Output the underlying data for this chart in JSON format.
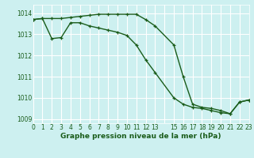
{
  "line1": {
    "x": [
      0,
      1,
      2,
      3,
      4,
      5,
      6,
      7,
      8,
      9,
      10,
      11,
      12,
      13,
      15,
      16,
      17,
      18,
      19,
      20,
      21,
      22,
      23
    ],
    "y": [
      1013.7,
      1013.75,
      1013.75,
      1013.75,
      1013.8,
      1013.85,
      1013.9,
      1013.95,
      1013.95,
      1013.95,
      1013.95,
      1013.95,
      1013.7,
      1013.4,
      1012.5,
      1011.0,
      1009.7,
      1009.55,
      1009.5,
      1009.4,
      1009.25,
      1009.8,
      1009.9
    ],
    "color": "#1a5c1a",
    "linewidth": 1.0,
    "marker": "+"
  },
  "line2": {
    "x": [
      0,
      1,
      2,
      3,
      4,
      5,
      6,
      7,
      8,
      9,
      10,
      11,
      12,
      13,
      15,
      16,
      17,
      18,
      19,
      20,
      21,
      22,
      23
    ],
    "y": [
      1013.7,
      1013.75,
      1012.8,
      1012.85,
      1013.55,
      1013.55,
      1013.4,
      1013.3,
      1013.2,
      1013.1,
      1012.95,
      1012.5,
      1011.8,
      1011.2,
      1010.0,
      1009.7,
      1009.55,
      1009.5,
      1009.4,
      1009.3,
      1009.25,
      1009.8,
      1009.9
    ],
    "color": "#1a5c1a",
    "linewidth": 1.0,
    "marker": "+"
  },
  "background_color": "#cdf0f0",
  "grid_color": "#ffffff",
  "xlabel": "Graphe pression niveau de la mer (hPa)",
  "xlabel_color": "#1a5c1a",
  "ylabel_ticks": [
    1009,
    1010,
    1011,
    1012,
    1013,
    1014
  ],
  "xtick_labels": [
    "0",
    "1",
    "2",
    "3",
    "4",
    "5",
    "6",
    "7",
    "8",
    "9",
    "10",
    "11",
    "12",
    "13",
    "",
    "15",
    "16",
    "17",
    "18",
    "19",
    "20",
    "21",
    "22",
    "23"
  ],
  "xtick_positions": [
    0,
    1,
    2,
    3,
    4,
    5,
    6,
    7,
    8,
    9,
    10,
    11,
    12,
    13,
    14,
    15,
    16,
    17,
    18,
    19,
    20,
    21,
    22,
    23
  ],
  "xlim": [
    0,
    23
  ],
  "ylim": [
    1008.8,
    1014.4
  ],
  "tick_color": "#1a5c1a",
  "tick_fontsize": 5.5,
  "xlabel_fontsize": 6.5
}
